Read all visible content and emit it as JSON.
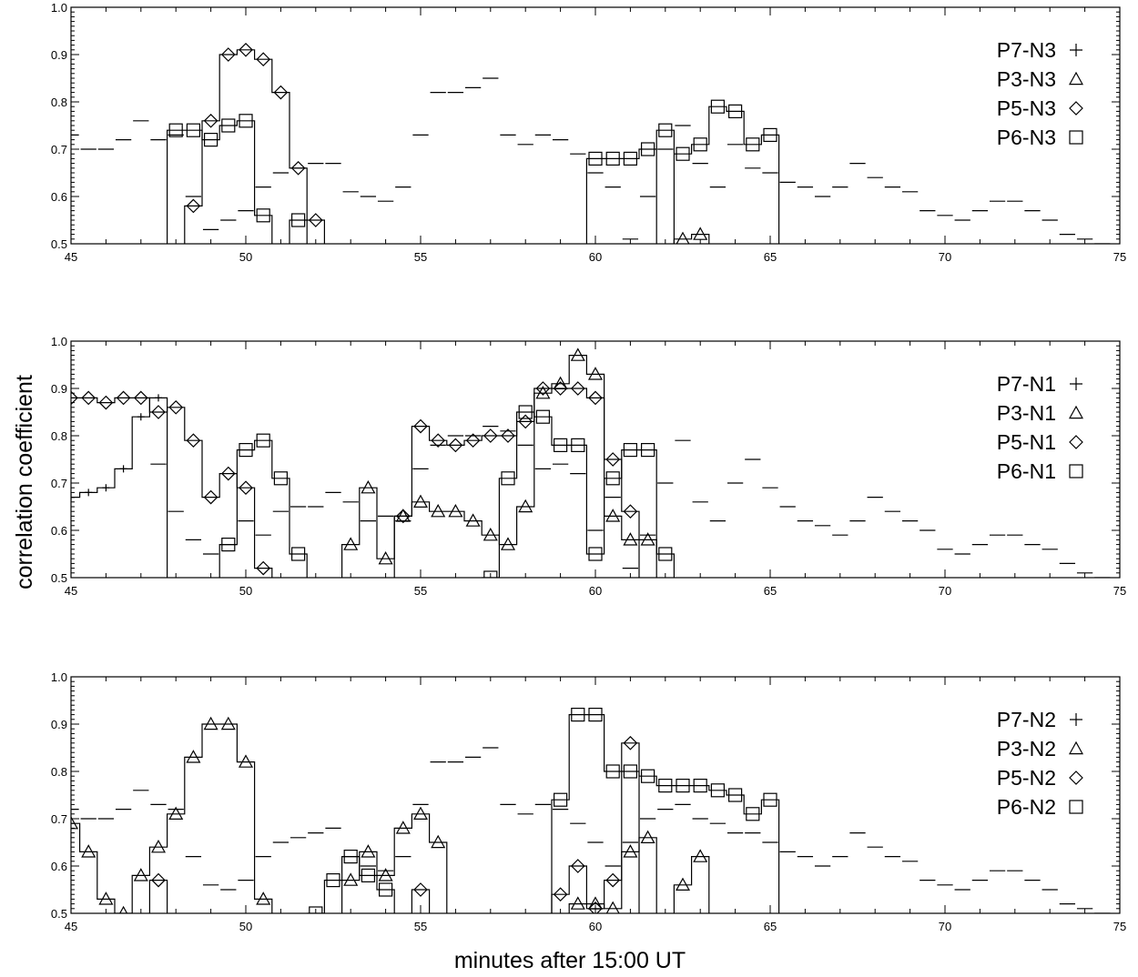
{
  "figure": {
    "ylabel": "correlation coefficient",
    "xlabel": "minutes after 15:00 UT"
  },
  "chart_data": [
    {
      "type": "line",
      "xlim": [
        45,
        75
      ],
      "ylim": [
        0.5,
        1.0
      ],
      "xticks": [
        45,
        50,
        55,
        60,
        65,
        70,
        75
      ],
      "xtick_labels": [
        "45",
        "50",
        "55",
        "60",
        "65",
        "70",
        "75"
      ],
      "yticks": [
        0.5,
        0.6,
        0.7,
        0.8,
        0.9,
        1.0
      ],
      "ytick_labels": [
        "0.5",
        "0.6",
        "0.7",
        "0.8",
        "0.9",
        "1.0"
      ],
      "legend_position": "right",
      "legend": [
        {
          "label": "P7-N3",
          "symbol": "plus",
          "glyph": "+"
        },
        {
          "label": "P3-N3",
          "symbol": "triangle",
          "glyph": "△"
        },
        {
          "label": "P5-N3",
          "symbol": "diamond",
          "glyph": "◇"
        },
        {
          "label": "P6-N3",
          "symbol": "square",
          "glyph": "□"
        }
      ],
      "series": [
        {
          "name": "P7-N3",
          "style": "dashed",
          "x": [
            45.0,
            45.5,
            46.0,
            46.5,
            47.0,
            47.5,
            48.0,
            48.5,
            49.0,
            49.5,
            50.0,
            50.5,
            51.0,
            51.5,
            52.0,
            52.5,
            53.0,
            53.5,
            54.0,
            54.5,
            55.0,
            55.5,
            56.0,
            56.5,
            57.0,
            57.5,
            58.0,
            58.5,
            59.0,
            59.5,
            60.0,
            60.5,
            61.0,
            61.5,
            62.0,
            62.5,
            63.0,
            63.5,
            64.0,
            64.5,
            65.0,
            65.5,
            66.0,
            66.5,
            67.0,
            67.5,
            68.0,
            68.5,
            69.0,
            69.5,
            70.0,
            70.5,
            71.0,
            71.5,
            72.0,
            72.5,
            73.0,
            73.5,
            74.0,
            74.5
          ],
          "y": [
            0.73,
            0.7,
            0.7,
            0.72,
            0.76,
            0.72,
            0.73,
            0.6,
            0.53,
            0.55,
            0.57,
            0.62,
            0.65,
            0.66,
            0.67,
            0.67,
            0.61,
            0.6,
            0.59,
            0.62,
            0.73,
            0.82,
            0.82,
            0.83,
            0.85,
            0.73,
            0.71,
            0.73,
            0.72,
            0.69,
            0.65,
            0.62,
            0.51,
            0.6,
            0.7,
            0.75,
            0.67,
            0.62,
            0.71,
            0.66,
            0.65,
            0.63,
            0.62,
            0.6,
            0.62,
            0.67,
            0.64,
            0.62,
            0.61,
            0.57,
            0.56,
            0.55,
            0.57,
            0.59,
            0.59,
            0.57,
            0.55,
            0.52,
            0.51,
            0.5
          ]
        },
        {
          "name": "P3-N3",
          "style": "solid",
          "x": [
            62.5,
            63.0
          ],
          "y": [
            0.51,
            0.52
          ]
        },
        {
          "name": "P5-N3",
          "style": "solid",
          "x": [
            48.5,
            49.0,
            49.5,
            50.0,
            50.5,
            51.0,
            51.5,
            52.0
          ],
          "y": [
            0.58,
            0.76,
            0.9,
            0.91,
            0.89,
            0.82,
            0.66,
            0.55
          ]
        },
        {
          "name": "P6-N3",
          "style": "solid",
          "x": [
            48.0,
            48.5,
            49.0,
            49.5,
            50.0,
            50.5,
            51.5,
            62.0,
            60.0,
            60.5,
            61.0,
            61.5,
            62.5,
            63.0,
            63.5,
            64.0,
            64.5,
            65.0
          ],
          "y": [
            0.74,
            0.74,
            0.72,
            0.75,
            0.76,
            0.56,
            0.55,
            0.74,
            0.68,
            0.68,
            0.68,
            0.7,
            0.69,
            0.71,
            0.79,
            0.78,
            0.71,
            0.73
          ]
        }
      ]
    },
    {
      "type": "line",
      "xlim": [
        45,
        75
      ],
      "ylim": [
        0.5,
        1.0
      ],
      "xticks": [
        45,
        50,
        55,
        60,
        65,
        70,
        75
      ],
      "xtick_labels": [
        "45",
        "50",
        "55",
        "60",
        "65",
        "70",
        "75"
      ],
      "yticks": [
        0.5,
        0.6,
        0.7,
        0.8,
        0.9,
        1.0
      ],
      "ytick_labels": [
        "0.5",
        "0.6",
        "0.7",
        "0.8",
        "0.9",
        "1.0"
      ],
      "legend_position": "right",
      "legend": [
        {
          "label": "P7-N1",
          "symbol": "plus",
          "glyph": "+"
        },
        {
          "label": "P3-N1",
          "symbol": "triangle",
          "glyph": "△"
        },
        {
          "label": "P5-N1",
          "symbol": "diamond",
          "glyph": "◇"
        },
        {
          "label": "P6-N1",
          "symbol": "square",
          "glyph": "□"
        }
      ],
      "series": [
        {
          "name": "P7-N1",
          "style": "solid",
          "x": [
            45.0,
            45.5,
            46.0,
            46.5,
            47.0,
            47.5
          ],
          "y": [
            0.67,
            0.68,
            0.69,
            0.73,
            0.84,
            0.88
          ]
        },
        {
          "name": "P7-N1 (dashed)",
          "style": "dashed",
          "x": [
            47.5,
            48.0,
            48.5,
            49.0,
            49.5,
            50.0,
            50.5,
            51.0,
            51.5,
            52.0,
            52.5,
            53.0,
            53.5,
            54.0,
            54.5,
            55.0,
            55.5,
            56.0,
            56.5,
            57.0,
            57.5,
            58.0,
            58.5,
            59.0,
            59.5,
            60.0,
            60.5,
            61.0,
            61.5,
            62.0,
            62.5,
            63.0,
            63.5,
            64.0,
            64.5,
            65.0,
            65.5,
            66.0,
            66.5,
            67.0,
            67.5,
            68.0,
            68.5,
            69.0,
            69.5,
            70.0,
            70.5,
            71.0,
            71.5,
            72.0,
            72.5,
            73.0,
            73.5,
            74.0,
            74.5
          ],
          "y": [
            0.74,
            0.64,
            0.58,
            0.55,
            0.57,
            0.62,
            0.59,
            0.64,
            0.65,
            0.65,
            0.68,
            0.66,
            0.62,
            0.63,
            0.62,
            0.73,
            0.78,
            0.8,
            0.8,
            0.82,
            0.81,
            0.78,
            0.73,
            0.74,
            0.72,
            0.6,
            0.67,
            0.52,
            0.59,
            0.7,
            0.79,
            0.66,
            0.62,
            0.7,
            0.75,
            0.69,
            0.65,
            0.62,
            0.61,
            0.59,
            0.62,
            0.67,
            0.64,
            0.62,
            0.6,
            0.56,
            0.55,
            0.57,
            0.59,
            0.59,
            0.57,
            0.56,
            0.53,
            0.51,
            0.5
          ]
        },
        {
          "name": "P3-N1",
          "style": "solid",
          "x": [
            53.0,
            53.5,
            54.0,
            54.5,
            55.0,
            55.5,
            56.0,
            56.5,
            57.0,
            57.5,
            58.0,
            58.5,
            59.0,
            59.5,
            60.0,
            60.5,
            61.0,
            61.5
          ],
          "y": [
            0.57,
            0.69,
            0.54,
            0.63,
            0.66,
            0.64,
            0.64,
            0.62,
            0.59,
            0.57,
            0.65,
            0.89,
            0.91,
            0.97,
            0.93,
            0.63,
            0.58,
            0.58
          ]
        },
        {
          "name": "P5-N1",
          "style": "solid",
          "x": [
            45.0,
            45.5,
            46.0,
            46.5,
            47.0,
            47.5,
            48.0,
            48.5,
            49.0,
            49.5,
            50.0,
            50.5,
            54.5,
            55.0,
            55.5,
            56.0,
            56.5,
            57.0,
            57.5,
            58.0,
            58.5,
            59.0,
            59.5,
            60.0,
            60.5,
            61.0
          ],
          "y": [
            0.88,
            0.88,
            0.87,
            0.88,
            0.88,
            0.85,
            0.86,
            0.79,
            0.67,
            0.72,
            0.69,
            0.52,
            0.63,
            0.82,
            0.79,
            0.78,
            0.79,
            0.8,
            0.8,
            0.83,
            0.9,
            0.9,
            0.9,
            0.88,
            0.75,
            0.64
          ]
        },
        {
          "name": "P6-N1",
          "style": "solid",
          "x": [
            49.5,
            50.0,
            50.5,
            51.0,
            51.5,
            57.0,
            57.5,
            58.0,
            58.5,
            59.0,
            59.5,
            60.0,
            60.5,
            61.0,
            61.5,
            62.0
          ],
          "y": [
            0.57,
            0.77,
            0.79,
            0.71,
            0.55,
            0.5,
            0.71,
            0.85,
            0.84,
            0.78,
            0.78,
            0.55,
            0.71,
            0.77,
            0.77,
            0.55
          ]
        }
      ]
    },
    {
      "type": "line",
      "xlim": [
        45,
        75
      ],
      "ylim": [
        0.5,
        1.0
      ],
      "xticks": [
        45,
        50,
        55,
        60,
        65,
        70,
        75
      ],
      "xtick_labels": [
        "45",
        "50",
        "55",
        "60",
        "65",
        "70",
        "75"
      ],
      "yticks": [
        0.5,
        0.6,
        0.7,
        0.8,
        0.9,
        1.0
      ],
      "ytick_labels": [
        "0.5",
        "0.6",
        "0.7",
        "0.8",
        "0.9",
        "1.0"
      ],
      "legend_position": "right",
      "legend": [
        {
          "label": "P7-N2",
          "symbol": "plus",
          "glyph": "+"
        },
        {
          "label": "P3-N2",
          "symbol": "triangle",
          "glyph": "△"
        },
        {
          "label": "P5-N2",
          "symbol": "diamond",
          "glyph": "◇"
        },
        {
          "label": "P6-N2",
          "symbol": "square",
          "glyph": "□"
        }
      ],
      "series": [
        {
          "name": "P7-N2",
          "style": "dashed",
          "x": [
            45.0,
            45.5,
            46.0,
            46.5,
            47.0,
            47.5,
            48.0,
            48.5,
            49.0,
            49.5,
            50.0,
            50.5,
            51.0,
            51.5,
            52.0,
            52.5,
            53.0,
            53.5,
            54.0,
            54.5,
            55.0,
            55.5,
            56.0,
            56.5,
            57.0,
            57.5,
            58.0,
            58.5,
            59.0,
            59.5,
            60.0,
            60.5,
            61.0,
            61.5,
            62.0,
            62.5,
            63.0,
            63.5,
            64.0,
            64.5,
            65.0,
            65.5,
            66.0,
            66.5,
            67.0,
            67.5,
            68.0,
            68.5,
            69.0,
            69.5,
            70.0,
            70.5,
            71.0,
            71.5,
            72.0,
            72.5,
            73.0,
            73.5,
            74.0,
            74.5
          ],
          "y": [
            0.72,
            0.7,
            0.7,
            0.72,
            0.76,
            0.73,
            0.72,
            0.62,
            0.56,
            0.55,
            0.57,
            0.62,
            0.65,
            0.66,
            0.67,
            0.68,
            0.62,
            0.6,
            0.59,
            0.62,
            0.73,
            0.82,
            0.82,
            0.83,
            0.85,
            0.73,
            0.71,
            0.73,
            0.72,
            0.69,
            0.65,
            0.6,
            0.65,
            0.7,
            0.72,
            0.73,
            0.7,
            0.69,
            0.67,
            0.67,
            0.65,
            0.63,
            0.62,
            0.6,
            0.62,
            0.67,
            0.64,
            0.62,
            0.61,
            0.57,
            0.56,
            0.55,
            0.57,
            0.59,
            0.59,
            0.57,
            0.55,
            0.52,
            0.51,
            0.5
          ]
        },
        {
          "name": "P3-N2",
          "style": "solid",
          "x": [
            45.0,
            45.5,
            46.0,
            46.5,
            47.0,
            47.5,
            48.0,
            48.5,
            49.0,
            49.5,
            50.0,
            50.5,
            53.0,
            53.5,
            54.0,
            54.5,
            55.0,
            55.5,
            59.5,
            60.0,
            60.5,
            61.0,
            61.5,
            62.5,
            63.0
          ],
          "y": [
            0.69,
            0.63,
            0.53,
            0.5,
            0.58,
            0.64,
            0.71,
            0.83,
            0.9,
            0.9,
            0.82,
            0.53,
            0.57,
            0.63,
            0.58,
            0.68,
            0.71,
            0.65,
            0.52,
            0.52,
            0.51,
            0.63,
            0.66,
            0.56,
            0.62
          ]
        },
        {
          "name": "P5-N2",
          "style": "solid",
          "x": [
            47.5,
            55.0,
            59.0,
            59.5,
            60.0,
            60.5,
            61.0
          ],
          "y": [
            0.57,
            0.55,
            0.54,
            0.6,
            0.51,
            0.57,
            0.86
          ]
        },
        {
          "name": "P6-N2",
          "style": "solid",
          "x": [
            52.0,
            52.5,
            53.0,
            53.5,
            54.0,
            59.0,
            59.5,
            60.0,
            60.5,
            61.0,
            61.5,
            62.0,
            62.5,
            63.0,
            63.5,
            64.0,
            64.5,
            65.0
          ],
          "y": [
            0.5,
            0.57,
            0.62,
            0.58,
            0.55,
            0.74,
            0.92,
            0.92,
            0.8,
            0.8,
            0.79,
            0.77,
            0.77,
            0.77,
            0.76,
            0.75,
            0.71,
            0.74
          ]
        }
      ]
    }
  ]
}
